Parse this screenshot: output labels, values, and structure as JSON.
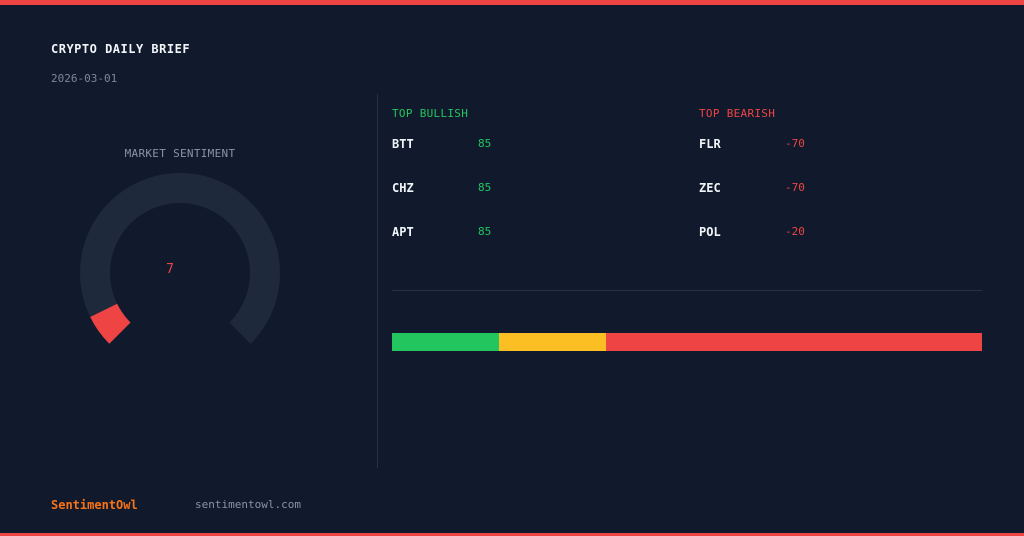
{
  "header": {
    "title": "CRYPTO DAILY BRIEF",
    "date": "2026-03-01"
  },
  "gauge": {
    "label": "MARKET SENTIMENT",
    "value": "7",
    "fraction": 0.07,
    "track_color": "#1e293b",
    "fill_color": "#ef4444"
  },
  "bullish": {
    "heading": "TOP BULLISH",
    "color": "#22c55e",
    "items": [
      {
        "symbol": "BTT",
        "score": "85"
      },
      {
        "symbol": "CHZ",
        "score": "85"
      },
      {
        "symbol": "APT",
        "score": "85"
      }
    ]
  },
  "bearish": {
    "heading": "TOP BEARISH",
    "color": "#ef4444",
    "items": [
      {
        "symbol": "FLR",
        "score": "-70"
      },
      {
        "symbol": "ZEC",
        "score": "-70"
      },
      {
        "symbol": "POL",
        "score": "-20"
      }
    ]
  },
  "distribution": {
    "segments": [
      {
        "color": "#22c55e",
        "fraction": 0.182
      },
      {
        "color": "#fbbf24",
        "fraction": 0.181
      },
      {
        "color": "#ef4444",
        "fraction": 0.637
      }
    ]
  },
  "footer": {
    "brand": "SentimentOwl",
    "site": "sentimentowl.com"
  },
  "colors": {
    "accent": "#ef4444",
    "background": "#101a2c",
    "brand": "#f97316"
  }
}
